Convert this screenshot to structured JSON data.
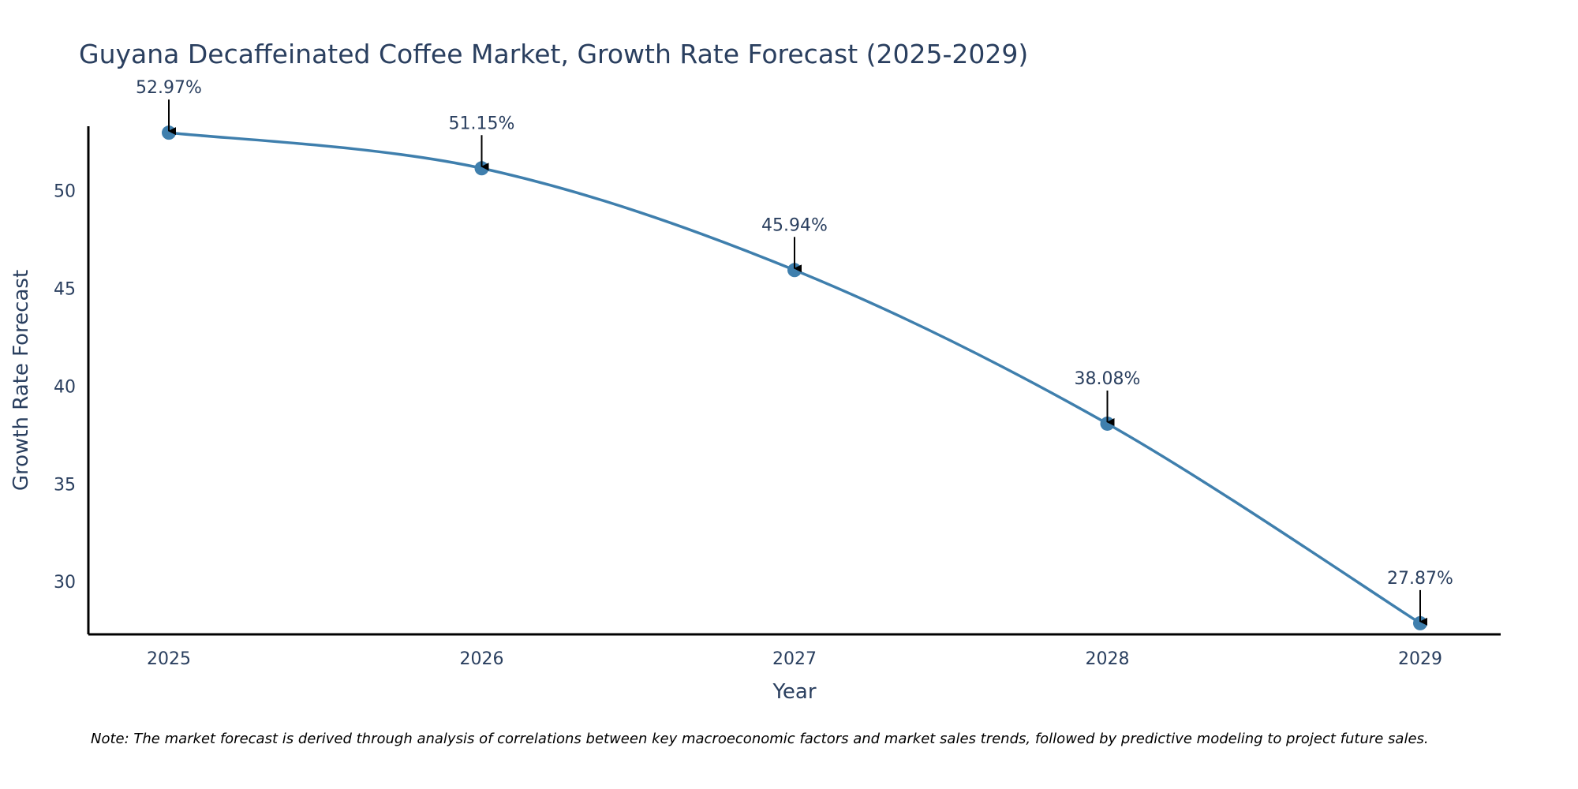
{
  "chart_data": {
    "type": "line",
    "title": "Guyana Decaffeinated Coffee Market, Growth Rate Forecast (2025-2029)",
    "xlabel": "Year",
    "ylabel": "Growth Rate Forecast",
    "categories": [
      "2025",
      "2026",
      "2027",
      "2028",
      "2029"
    ],
    "series": [
      {
        "name": "Growth Rate Forecast",
        "values": [
          52.97,
          51.15,
          45.94,
          38.08,
          27.87
        ]
      }
    ],
    "data_labels": [
      "52.97%",
      "51.15%",
      "45.94%",
      "38.08%",
      "27.87%"
    ],
    "ylim": [
      27.3,
      53.3
    ],
    "yticks": [
      30,
      35,
      40,
      45,
      50
    ],
    "ytick_labels": [
      "30",
      "35",
      "40",
      "45",
      "50"
    ],
    "grid": false,
    "line_shape": "spline",
    "colors": {
      "line": "#3f7fad",
      "marker": "#3f7fad",
      "arrow": "#000000",
      "text": "#2a3f5f",
      "axis": "#000000"
    },
    "note": "Note: The market forecast is derived through analysis of correlations between key macroeconomic factors and market sales trends, followed by predictive modeling to project future sales."
  }
}
